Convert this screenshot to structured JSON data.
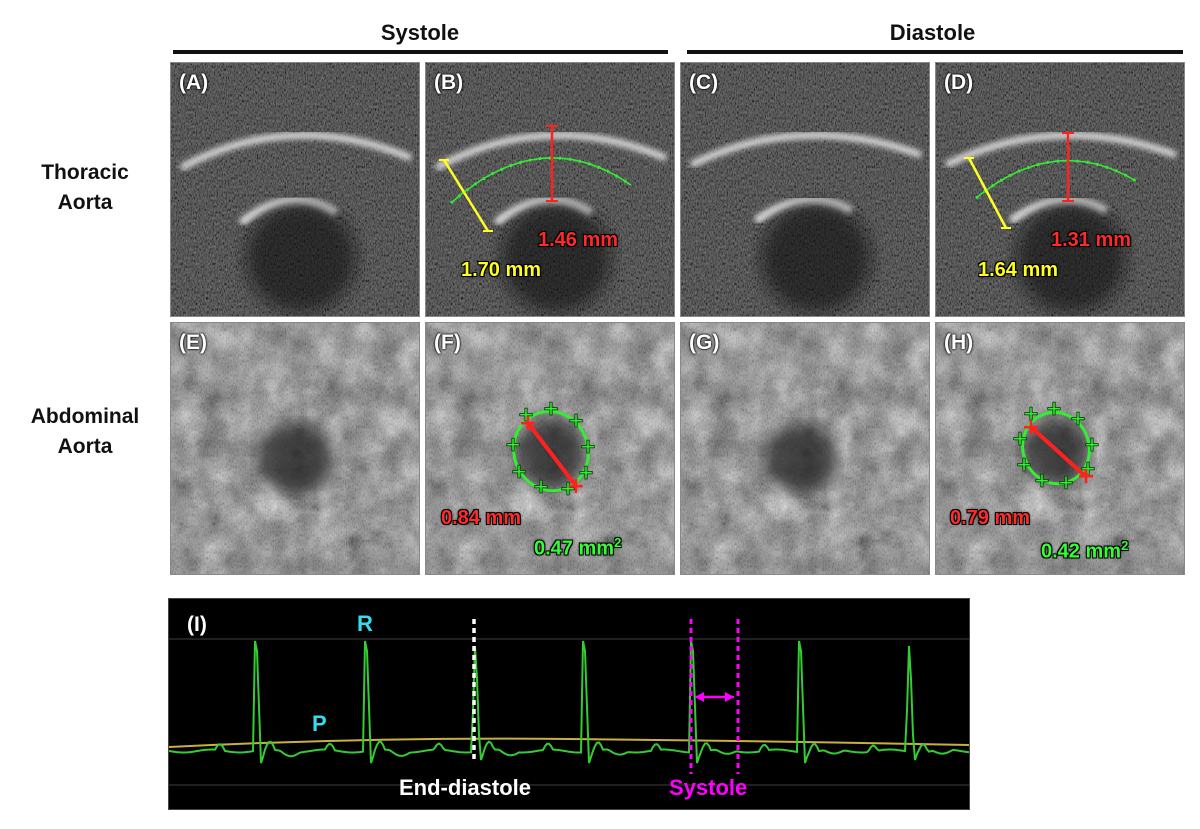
{
  "headers": {
    "systole": "Systole",
    "diastole": "Diastole"
  },
  "rows": {
    "thoracic": [
      "Thoracic",
      "Aorta"
    ],
    "abdominal": [
      "Abdominal",
      "Aorta"
    ]
  },
  "panels": {
    "A": "(A)",
    "B": "(B)",
    "C": "(C)",
    "D": "(D)",
    "E": "(E)",
    "F": "(F)",
    "G": "(G)",
    "H": "(H)",
    "I": "(I)"
  },
  "measurements": {
    "B_wall": "1.46 mm",
    "B_diam": "1.70 mm",
    "D_wall": "1.31 mm",
    "D_diam": "1.64 mm",
    "F_diam": "0.84 mm",
    "F_area_value": "0.47 mm",
    "F_area_exp": "2",
    "H_diam": "0.79 mm",
    "H_area_value": "0.42 mm",
    "H_area_exp": "2"
  },
  "ecg": {
    "R_label": "R",
    "P_label": "P",
    "end_diastole_label": "End-diastole",
    "systole_label": "Systole"
  },
  "colors": {
    "ecg_trace": "#33cc33",
    "baseline": "#c8b040",
    "marker_systole": "#ff00ff",
    "label_cyan": "#33ddee"
  }
}
